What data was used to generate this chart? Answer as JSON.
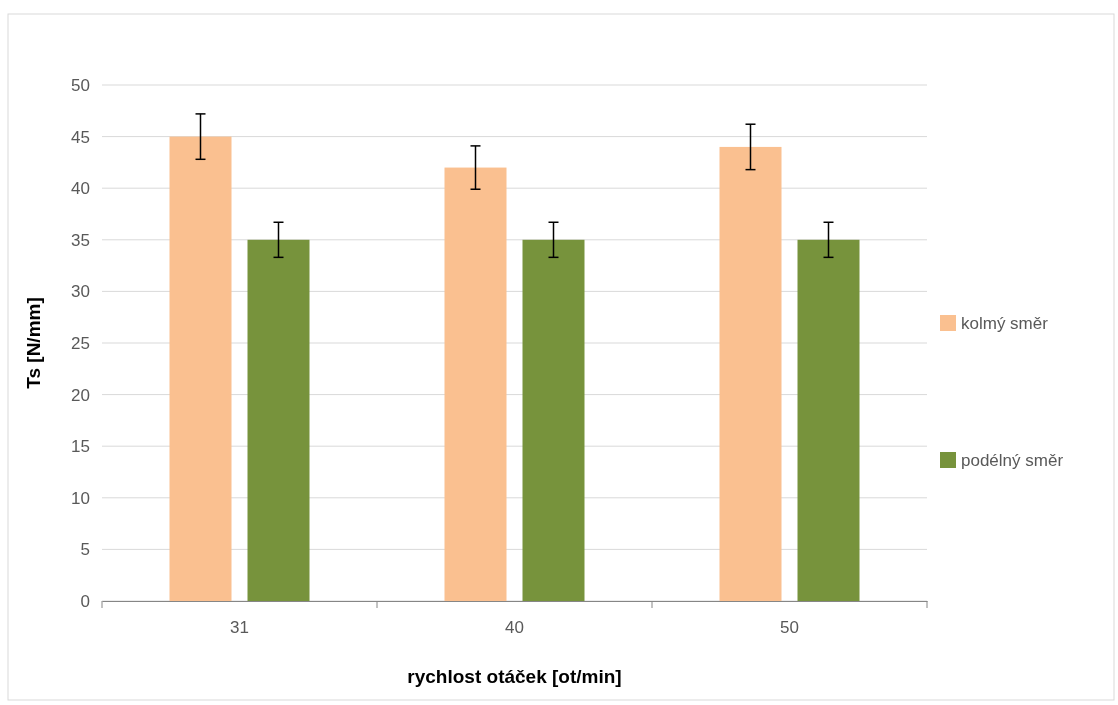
{
  "chart_data": {
    "type": "bar",
    "xlabel": "rychlost otáček [ot/min]",
    "ylabel": "Ts [N/mm]",
    "categories": [
      "31",
      "40",
      "50"
    ],
    "series": [
      {
        "name": "kolmý směr",
        "color": "#fac090",
        "values": [
          45,
          42,
          44
        ],
        "errors": [
          2.2,
          2.1,
          2.2
        ]
      },
      {
        "name": "podélný směr",
        "color": "#77933c",
        "values": [
          35,
          35,
          35
        ],
        "errors": [
          1.7,
          1.7,
          1.7
        ]
      }
    ],
    "ylim": [
      0,
      50
    ],
    "yticks": [
      0,
      5,
      10,
      15,
      20,
      25,
      30,
      35,
      40,
      45,
      50
    ],
    "grid": "y",
    "legend": "right"
  }
}
